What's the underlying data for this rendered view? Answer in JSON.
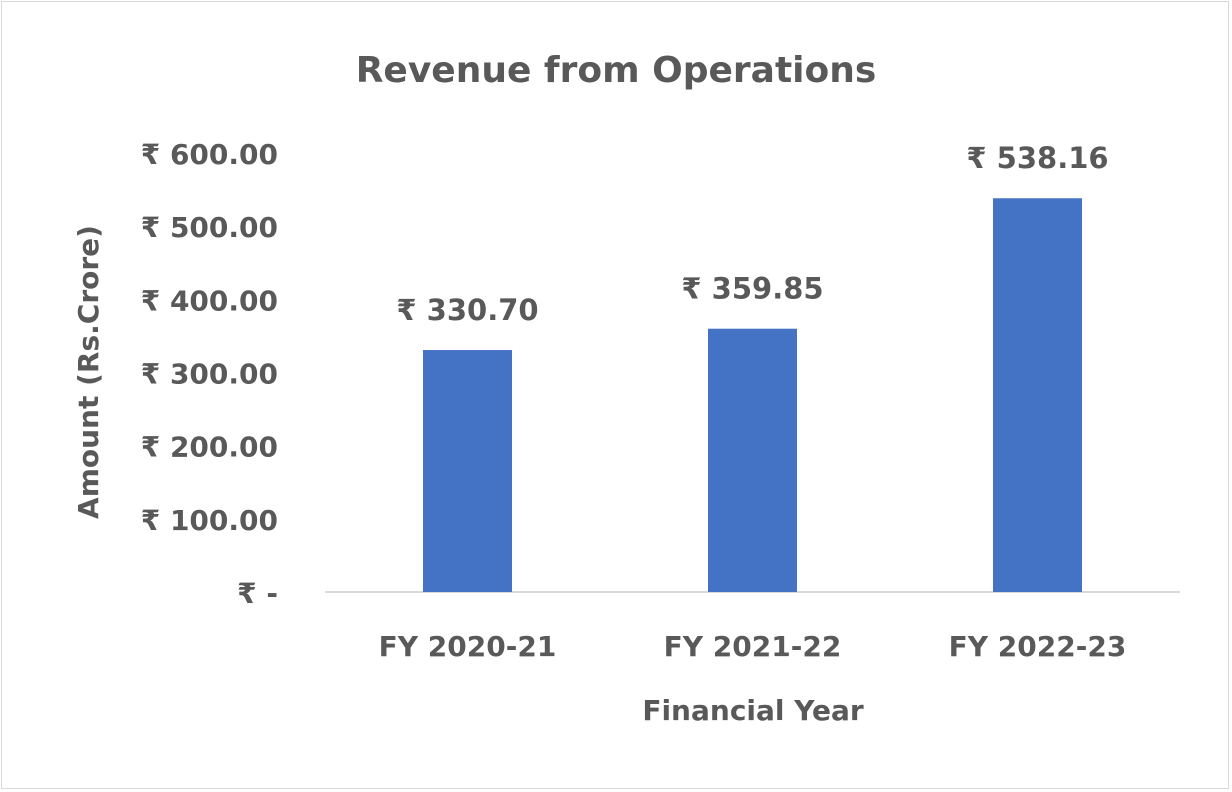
{
  "chart_data": {
    "type": "bar",
    "title": "Revenue from Operations",
    "xlabel": "Financial Year",
    "ylabel": "Amount (Rs.Crore)",
    "categories": [
      "FY 2020-21",
      "FY 2021-22",
      "FY 2022-23"
    ],
    "values": [
      330.7,
      359.85,
      538.16
    ],
    "data_labels": [
      "₹ 330.70",
      "₹ 359.85",
      "₹ 538.16"
    ],
    "ylim": [
      0,
      600
    ],
    "yticks": [
      0,
      100,
      200,
      300,
      400,
      500,
      600
    ],
    "ytick_labels": [
      "₹ -",
      "₹ 100.00",
      "₹ 200.00",
      "₹ 300.00",
      "₹ 400.00",
      "₹ 500.00",
      "₹ 600.00"
    ],
    "grid": false,
    "legend": "none",
    "bar_color": "#4472C4",
    "text_color": "#595959"
  }
}
